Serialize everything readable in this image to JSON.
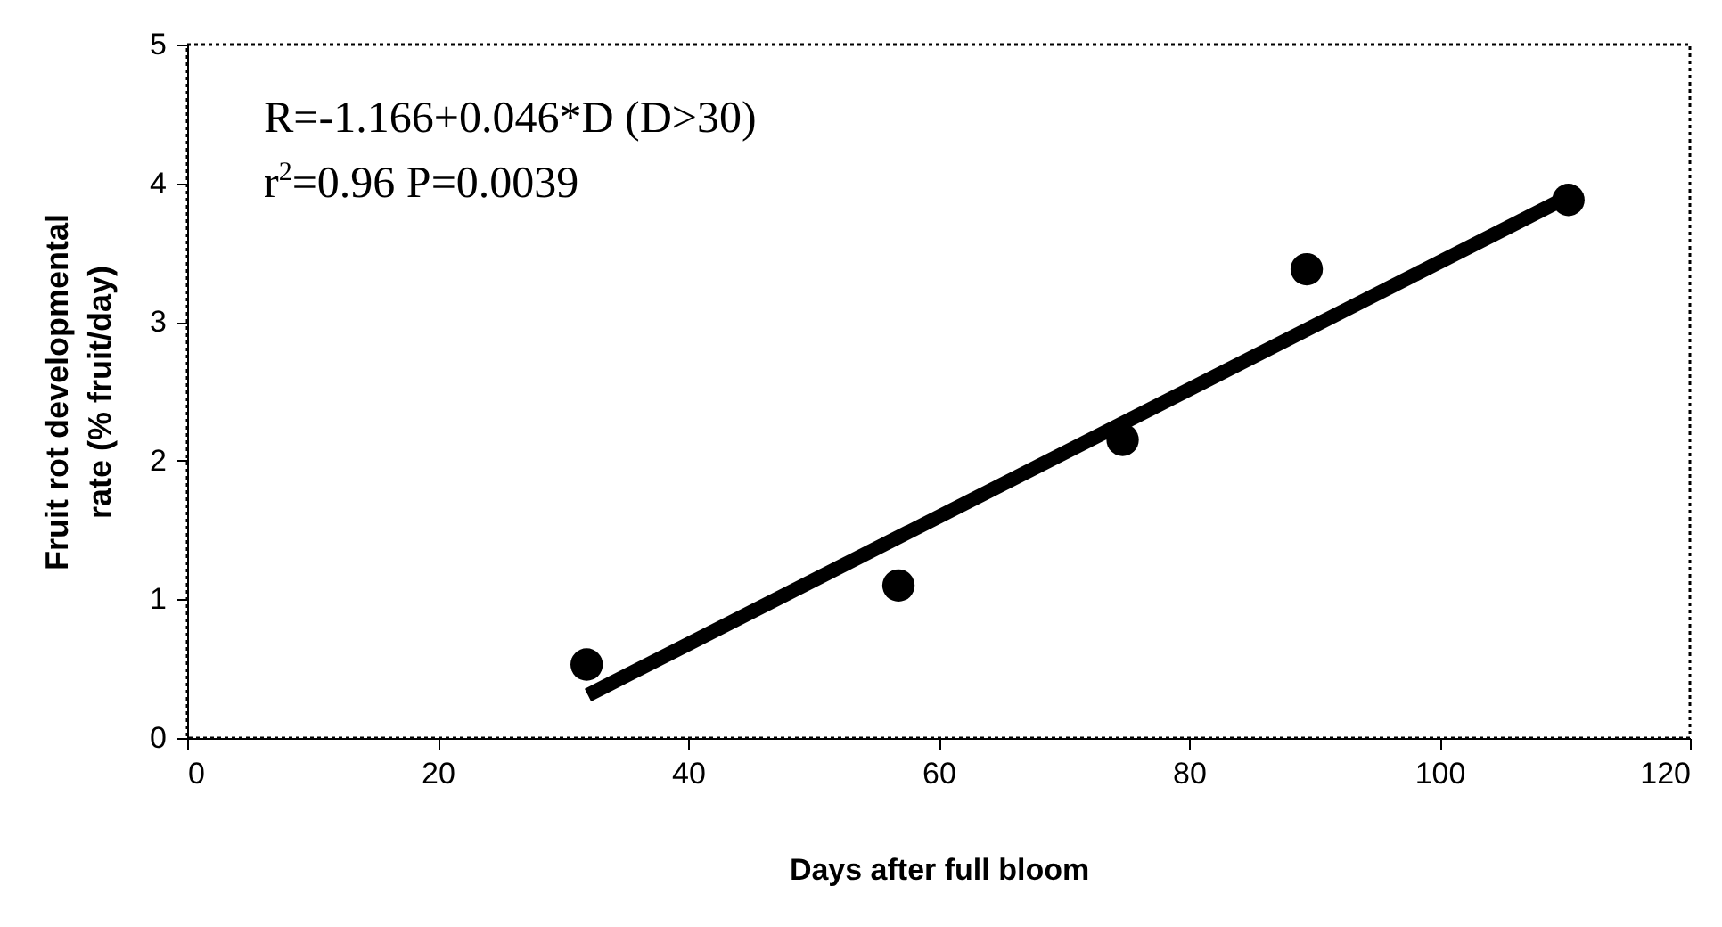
{
  "chart_data": {
    "type": "scatter",
    "xlabel": "Days after full bloom",
    "ylabel": "Fruit rot developmental rate (% fruit/day)",
    "xlim": [
      0,
      120
    ],
    "xticks": [
      0,
      20,
      40,
      60,
      80,
      100,
      120
    ],
    "ylim": [
      0,
      5
    ],
    "yticks": [
      0,
      1,
      2,
      3,
      4,
      5
    ],
    "grid": false,
    "annotations": [
      "R=-1.166+0.046*D (D>30)",
      "r$^{2}$=0.96  P=0.0039"
    ],
    "series": [
      {
        "marker": "circle",
        "color": "#000000",
        "x": [
          31.9,
          56.8,
          74.7,
          89.4,
          110.3
        ],
        "values": [
          0.53,
          1.1,
          2.15,
          3.38,
          3.88
        ]
      },
      {
        "type": "line",
        "color": "#000000",
        "line_style": "solid",
        "x": [
          32,
          110
        ],
        "values": [
          0.31,
          3.89
        ]
      }
    ]
  }
}
